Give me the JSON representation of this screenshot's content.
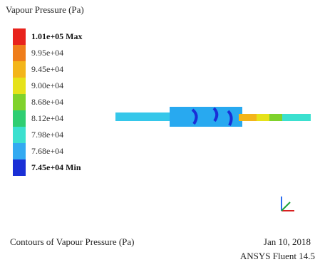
{
  "title": "Vapour Pressure (Pa)",
  "legend": [
    {
      "label": "1.01e+05 Max",
      "color": "#e8231c",
      "strong": true
    },
    {
      "label": "9.95e+04",
      "color": "#ef7d1a",
      "strong": false
    },
    {
      "label": "9.45e+04",
      "color": "#f3b51a",
      "strong": false
    },
    {
      "label": "9.00e+04",
      "color": "#e6e21a",
      "strong": false
    },
    {
      "label": "8.68e+04",
      "color": "#7fd22c",
      "strong": false
    },
    {
      "label": "8.12e+04",
      "color": "#2fce72",
      "strong": false
    },
    {
      "label": "7.98e+04",
      "color": "#3be0cf",
      "strong": false
    },
    {
      "label": "7.68e+04",
      "color": "#33aaf1",
      "strong": false
    },
    {
      "label": "7.45e+04 Min",
      "color": "#1a2fd6",
      "strong": true
    }
  ],
  "footer": {
    "caption": "Contours of Vapour Pressure (Pa)",
    "date": "Jan 10, 2018",
    "version": "ANSYS Fluent 14.5"
  },
  "icons": {
    "axis_triad": "xyz-axis-triad-icon"
  }
}
